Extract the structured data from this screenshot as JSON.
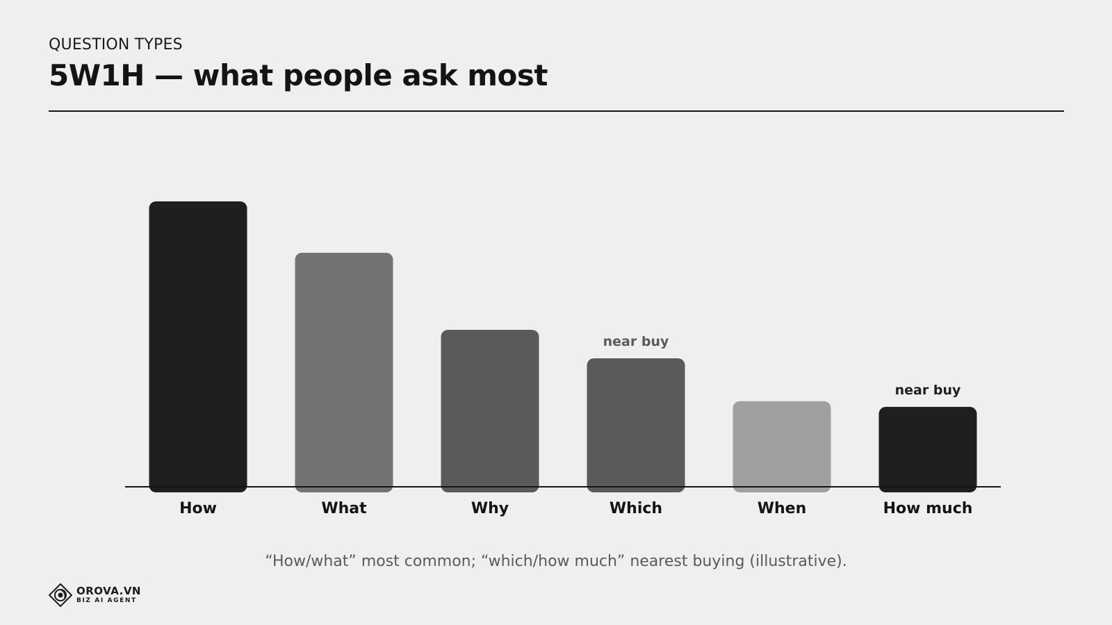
{
  "header": {
    "eyebrow": "QUESTION TYPES",
    "title": "5W1H — what people ask most"
  },
  "caption": "“How/what” most common; “which/how much” nearest buying (illustrative).",
  "logo": {
    "name": "OROVA.VN",
    "tagline": "BIZ AI AGENT",
    "icon": "orova-logo-icon"
  },
  "chart_data": {
    "type": "bar",
    "title": "",
    "xlabel": "",
    "ylabel": "",
    "ylim": [
      0,
      100
    ],
    "grid": false,
    "categories": [
      "How",
      "What",
      "Why",
      "Which",
      "When",
      "How much"
    ],
    "values": [
      100,
      82,
      55,
      45,
      30,
      28
    ],
    "colors": [
      "#1f1f1f",
      "#737373",
      "#5a5a5a",
      "#5a5a5a",
      "#a0a0a0",
      "#1f1f1f"
    ],
    "annotations": [
      {
        "category": "Which",
        "text": "near buy",
        "color": "#5a5a5a"
      },
      {
        "category": "How much",
        "text": "near buy",
        "color": "#1f1f1f"
      }
    ]
  }
}
